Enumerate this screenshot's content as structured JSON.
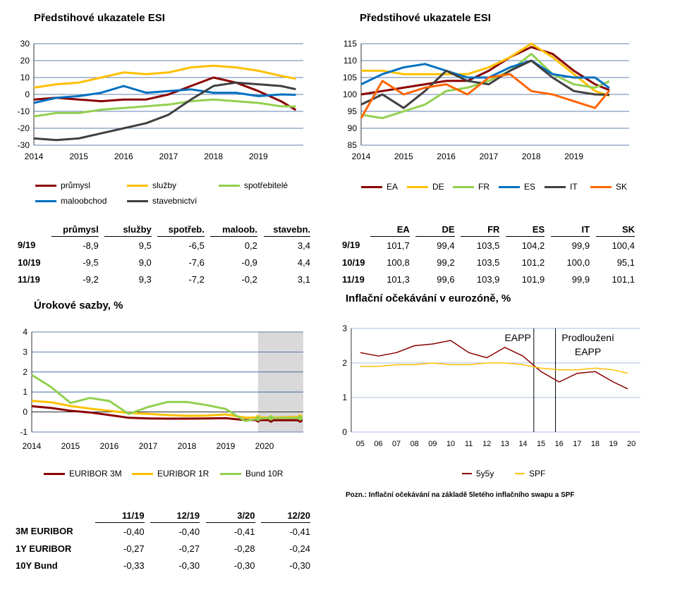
{
  "charts": {
    "esi_cz": {
      "title": "Předstihové ukazatele ESI",
      "ylim": [
        -30,
        30
      ],
      "yticks": [
        "30",
        "20",
        "10",
        "0",
        "-10",
        "-20",
        "-30"
      ],
      "xticks": [
        "2014",
        "2015",
        "2016",
        "2017",
        "2018",
        "2019"
      ]
    },
    "esi_eu": {
      "title": "Předstihové ukazatele ESI",
      "ylim": [
        85,
        115
      ],
      "yticks": [
        "115",
        "110",
        "105",
        "100",
        "95",
        "90",
        "85"
      ],
      "xticks": [
        "2014",
        "2015",
        "2016",
        "2017",
        "2018",
        "2019"
      ]
    },
    "rates": {
      "title": "Úrokové sazby, %",
      "ylim": [
        -1,
        4
      ],
      "yticks": [
        "4",
        "3",
        "2",
        "1",
        "0",
        "-1"
      ],
      "xticks": [
        "2014",
        "2015",
        "2016",
        "2017",
        "2018",
        "2019",
        "2020"
      ]
    },
    "inflation": {
      "title": "Inflační očekávání v eurozóně, %",
      "ylim": [
        0,
        3
      ],
      "yticks": [
        "3",
        "2",
        "1",
        "0"
      ],
      "xticks": [
        "05",
        "06",
        "07",
        "08",
        "09",
        "10",
        "11",
        "12",
        "13",
        "14",
        "15",
        "16",
        "17",
        "18",
        "19",
        "20"
      ],
      "annot_eapp": "EAPP",
      "annot_ext_1": "Prodloužení",
      "annot_ext_2": "EAPP",
      "note": "Pozn.: Inflační očekávání na základě 5letého inflačního swapu a SPF"
    }
  },
  "chart_data": [
    {
      "type": "line",
      "title": "Předstihové ukazatele ESI",
      "x": [
        "2014-01",
        "2014-07",
        "2015-01",
        "2015-07",
        "2016-01",
        "2016-07",
        "2017-01",
        "2017-07",
        "2018-01",
        "2018-07",
        "2019-01",
        "2019-07",
        "2019-11"
      ],
      "ylim": [
        -30,
        30
      ],
      "series": [
        {
          "name": "průmysl",
          "color": "#8b0000",
          "values": [
            -3,
            -2,
            -3,
            -4,
            -3,
            -3,
            0,
            5,
            10,
            7,
            2,
            -4,
            -9.2
          ]
        },
        {
          "name": "služby",
          "color": "#ffc000",
          "values": [
            4,
            6,
            7,
            10,
            13,
            12,
            13,
            16,
            17,
            16,
            14,
            11,
            9.3
          ]
        },
        {
          "name": "spotřebitelé",
          "color": "#92d050",
          "values": [
            -13,
            -11,
            -11,
            -9,
            -8,
            -7,
            -6,
            -4,
            -3,
            -4,
            -5,
            -7,
            -7.2
          ]
        },
        {
          "name": "maloobchod",
          "color": "#0070c0",
          "values": [
            -5,
            -2,
            -1,
            1,
            5,
            1,
            2,
            3,
            1,
            1,
            -1,
            0,
            -0.2
          ]
        },
        {
          "name": "stavebnictví",
          "color": "#404040",
          "values": [
            -26,
            -27,
            -26,
            -23,
            -20,
            -17,
            -12,
            -3,
            5,
            7,
            6,
            5,
            3.1
          ]
        }
      ]
    },
    {
      "type": "line",
      "title": "Předstihové ukazatele ESI",
      "x": [
        "2014-01",
        "2014-07",
        "2015-01",
        "2015-07",
        "2016-01",
        "2016-07",
        "2017-01",
        "2017-07",
        "2018-01",
        "2018-07",
        "2019-01",
        "2019-07",
        "2019-11"
      ],
      "ylim": [
        85,
        115
      ],
      "series": [
        {
          "name": "EA",
          "color": "#8b0000",
          "values": [
            100,
            101,
            102,
            103,
            104,
            104,
            107,
            111,
            114,
            112,
            107,
            103,
            101.3
          ]
        },
        {
          "name": "DE",
          "color": "#ffc000",
          "values": [
            107,
            107,
            106,
            106,
            106,
            106,
            108,
            111,
            115,
            111,
            106,
            101,
            99.6
          ]
        },
        {
          "name": "FR",
          "color": "#92d050",
          "values": [
            94,
            93,
            95,
            97,
            101,
            102,
            104,
            107,
            112,
            106,
            103,
            102,
            103.9
          ]
        },
        {
          "name": "ES",
          "color": "#0070c0",
          "values": [
            103,
            106,
            108,
            109,
            107,
            105,
            105,
            108,
            110,
            106,
            105,
            105,
            101.9
          ]
        },
        {
          "name": "IT",
          "color": "#404040",
          "values": [
            97,
            100,
            96,
            101,
            107,
            104,
            103,
            107,
            110,
            105,
            101,
            100,
            99.9
          ]
        },
        {
          "name": "SK",
          "color": "#ff6600",
          "values": [
            93,
            104,
            100,
            102,
            103,
            100,
            105,
            106,
            101,
            100,
            98,
            96,
            101.1
          ]
        }
      ]
    },
    {
      "type": "line",
      "title": "Úrokové sazby, %",
      "x": [
        "2014-01",
        "2014-07",
        "2015-01",
        "2015-07",
        "2016-01",
        "2016-07",
        "2017-01",
        "2017-07",
        "2018-01",
        "2018-07",
        "2019-01",
        "2019-07",
        "2019-11",
        "2020-03",
        "2020-12"
      ],
      "ylim": [
        -1,
        4
      ],
      "forecast_from": "2019-11",
      "series": [
        {
          "name": "EURIBOR 3M",
          "color": "#8b0000",
          "values": [
            0.29,
            0.2,
            0.06,
            -0.02,
            -0.15,
            -0.29,
            -0.32,
            -0.33,
            -0.33,
            -0.32,
            -0.31,
            -0.4,
            -0.4,
            -0.41,
            -0.41
          ]
        },
        {
          "name": "EURIBOR 1R",
          "color": "#ffc000",
          "values": [
            0.56,
            0.49,
            0.3,
            0.17,
            0.06,
            -0.05,
            -0.09,
            -0.15,
            -0.19,
            -0.18,
            -0.12,
            -0.28,
            -0.27,
            -0.28,
            -0.24
          ]
        },
        {
          "name": "Bund 10R",
          "color": "#92d050",
          "values": [
            1.85,
            1.25,
            0.45,
            0.7,
            0.55,
            -0.1,
            0.25,
            0.5,
            0.5,
            0.35,
            0.15,
            -0.45,
            -0.33,
            -0.3,
            -0.3
          ]
        }
      ]
    },
    {
      "type": "line",
      "title": "Inflační očekávání v eurozóně, %",
      "x": [
        "2005",
        "2006",
        "2007",
        "2008",
        "2009",
        "2010",
        "2011",
        "2012",
        "2013",
        "2014",
        "2015",
        "2016",
        "2017",
        "2018",
        "2019",
        "2019.8"
      ],
      "ylim": [
        0,
        3
      ],
      "series": [
        {
          "name": "5y5y",
          "color": "#8b0000",
          "values": [
            2.3,
            2.2,
            2.3,
            2.5,
            2.55,
            2.65,
            2.3,
            2.15,
            2.45,
            2.2,
            1.75,
            1.45,
            1.7,
            1.75,
            1.45,
            1.25
          ]
        },
        {
          "name": "SPF",
          "color": "#ffc000",
          "values": [
            1.9,
            1.9,
            1.95,
            1.95,
            2.0,
            1.95,
            1.95,
            2.0,
            2.0,
            1.95,
            1.85,
            1.8,
            1.8,
            1.85,
            1.8,
            1.7
          ]
        }
      ]
    }
  ],
  "tables": {
    "cz": {
      "headers": [
        "průmysl",
        "služby",
        "spotřeb.",
        "maloob.",
        "stavebn."
      ],
      "rows": [
        {
          "label": "9/19",
          "values": [
            "-8,9",
            "9,5",
            "-6,5",
            "0,2",
            "3,4"
          ]
        },
        {
          "label": "10/19",
          "values": [
            "-9,5",
            "9,0",
            "-7,6",
            "-0,9",
            "4,4"
          ]
        },
        {
          "label": "11/19",
          "values": [
            "-9,2",
            "9,3",
            "-7,2",
            "-0,2",
            "3,1"
          ]
        }
      ]
    },
    "eu": {
      "headers": [
        "EA",
        "DE",
        "FR",
        "ES",
        "IT",
        "SK"
      ],
      "rows": [
        {
          "label": "9/19",
          "values": [
            "101,7",
            "99,4",
            "103,5",
            "104,2",
            "99,9",
            "100,4"
          ]
        },
        {
          "label": "10/19",
          "values": [
            "100,8",
            "99,2",
            "103,5",
            "101,2",
            "100,0",
            "95,1"
          ]
        },
        {
          "label": "11/19",
          "values": [
            "101,3",
            "99,6",
            "103,9",
            "101,9",
            "99,9",
            "101,1"
          ]
        }
      ]
    },
    "rates": {
      "headers": [
        "11/19",
        "12/19",
        "3/20",
        "12/20"
      ],
      "rows": [
        {
          "label": "3M EURIBOR",
          "values": [
            "-0,40",
            "-0,40",
            "-0,41",
            "-0,41"
          ]
        },
        {
          "label": "1Y EURIBOR",
          "values": [
            "-0,27",
            "-0,27",
            "-0,28",
            "-0,24"
          ]
        },
        {
          "label": "10Y Bund",
          "values": [
            "-0,33",
            "-0,30",
            "-0,30",
            "-0,30"
          ]
        }
      ]
    }
  }
}
